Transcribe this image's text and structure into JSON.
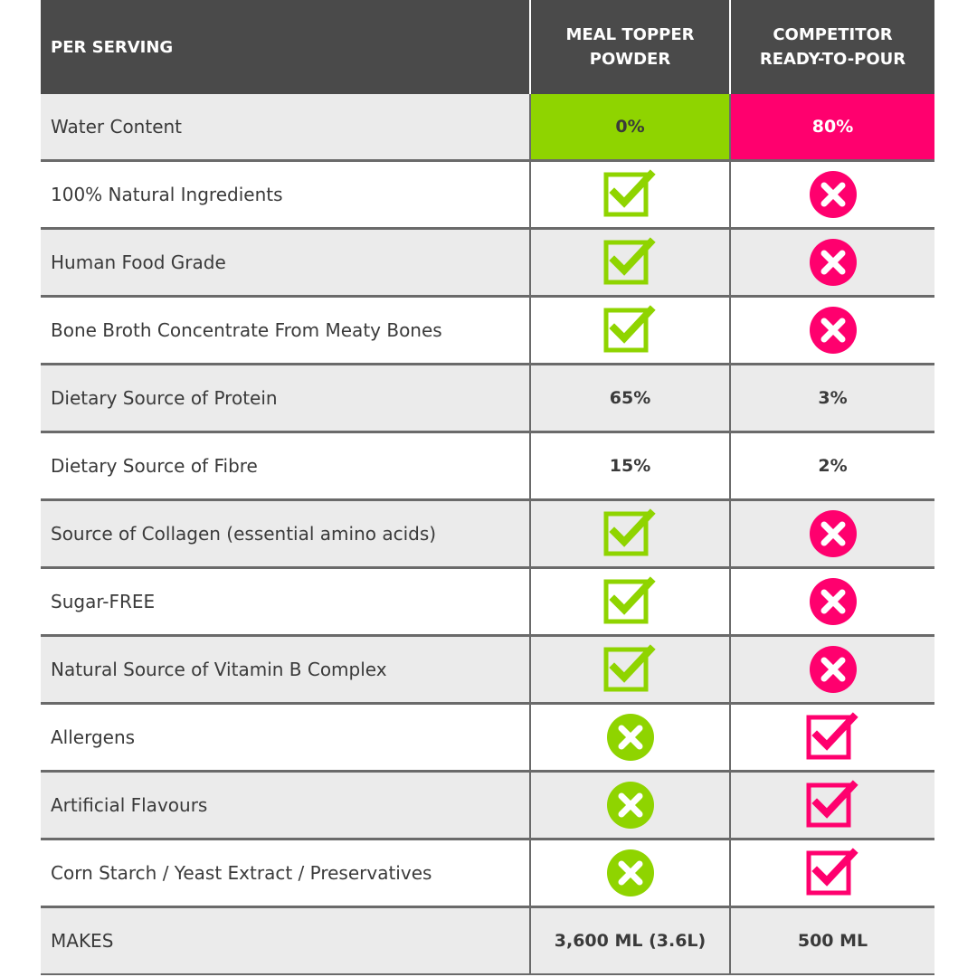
{
  "header": {
    "col_label": "PER SERVING",
    "col_a_line1": "MEAL TOPPER",
    "col_a_line2": "POWDER",
    "col_b_line1": "COMPETITOR",
    "col_b_line2": "READY-TO-POUR"
  },
  "colors": {
    "green": "#8fd400",
    "pink": "#ff006e",
    "header_bg": "#4a4a4a",
    "shaded_row": "#ebebeb"
  },
  "rows": [
    {
      "label": "Water Content",
      "a": "0%",
      "b": "80%"
    },
    {
      "label": "100% Natural Ingredients",
      "a": "check-icon",
      "b": "cross-icon"
    },
    {
      "label": "Human Food Grade",
      "a": "check-icon",
      "b": "cross-icon"
    },
    {
      "label": "Bone Broth Concentrate From Meaty Bones",
      "a": "check-icon",
      "b": "cross-icon"
    },
    {
      "label": "Dietary Source of Protein",
      "a": "65%",
      "b": "3%"
    },
    {
      "label": "Dietary Source of Fibre",
      "a": "15%",
      "b": "2%"
    },
    {
      "label": "Source of Collagen (essential amino acids)",
      "a": "check-icon",
      "b": "cross-icon"
    },
    {
      "label": "Sugar-FREE",
      "a": "check-icon",
      "b": "cross-icon"
    },
    {
      "label": "Natural Source of Vitamin B Complex",
      "a": "check-icon",
      "b": "cross-icon"
    },
    {
      "label": "Allergens",
      "a": "cross-icon",
      "b": "check-icon"
    },
    {
      "label": "Artificial Flavours",
      "a": "cross-icon",
      "b": "check-icon"
    },
    {
      "label": "Corn Starch / Yeast Extract / Preservatives",
      "a": "cross-icon",
      "b": "check-icon"
    },
    {
      "label": "MAKES",
      "a": "3,600 ML (3.6L)",
      "b": "500 ML"
    }
  ]
}
